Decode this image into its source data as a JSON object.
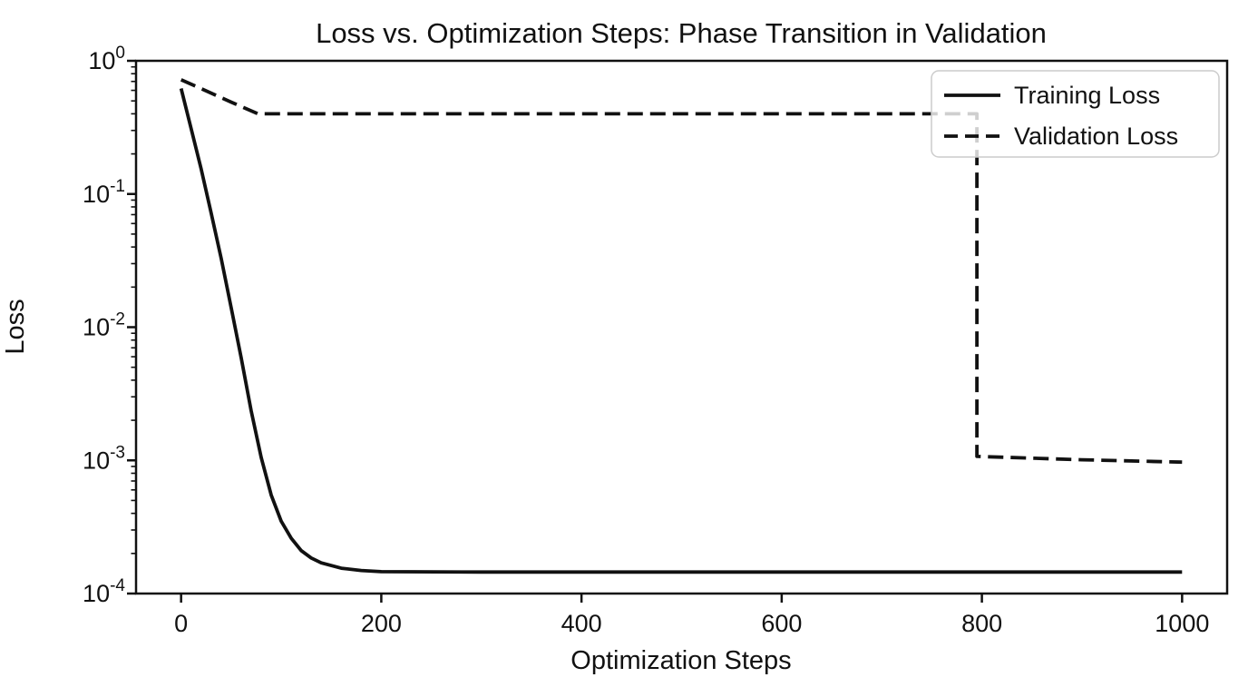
{
  "figure": {
    "background": "#ffffff",
    "line_color": "#111111",
    "legend_border_color": "#cccccc",
    "legend_bg": "rgba(255,255,255,0.8)"
  },
  "chart_data": {
    "type": "line",
    "title": "Loss vs. Optimization Steps: Phase Transition in Validation",
    "xlabel": "Optimization Steps",
    "ylabel": "Loss",
    "x_scale": "linear",
    "y_scale": "log",
    "x_ticks": [
      0,
      200,
      400,
      600,
      800,
      1000
    ],
    "y_tick_exponents": [
      0,
      -1,
      -2,
      -3,
      -4
    ],
    "xlim": [
      -45,
      1045
    ],
    "ylim": [
      0.0001,
      1.0
    ],
    "grid": false,
    "legend": {
      "position": "upper right",
      "entries": [
        "Training Loss",
        "Validation Loss"
      ]
    },
    "series": [
      {
        "name": "Training Loss",
        "style": "solid",
        "color": "#111111",
        "points": [
          [
            0,
            0.62
          ],
          [
            10,
            0.31
          ],
          [
            20,
            0.155
          ],
          [
            30,
            0.072
          ],
          [
            40,
            0.033
          ],
          [
            50,
            0.0141
          ],
          [
            60,
            0.0059
          ],
          [
            70,
            0.00236
          ],
          [
            80,
            0.00105
          ],
          [
            90,
            0.00055
          ],
          [
            100,
            0.00035
          ],
          [
            110,
            0.00026
          ],
          [
            120,
            0.00021
          ],
          [
            130,
            0.000185
          ],
          [
            140,
            0.00017
          ],
          [
            160,
            0.000155
          ],
          [
            180,
            0.000149
          ],
          [
            200,
            0.000146
          ],
          [
            300,
            0.000145
          ],
          [
            400,
            0.000145
          ],
          [
            500,
            0.000145
          ],
          [
            600,
            0.000145
          ],
          [
            700,
            0.000145
          ],
          [
            800,
            0.000145
          ],
          [
            900,
            0.000145
          ],
          [
            1000,
            0.000145
          ]
        ]
      },
      {
        "name": "Validation Loss",
        "style": "dashed",
        "color": "#111111",
        "points": [
          [
            0,
            0.72
          ],
          [
            25,
            0.595
          ],
          [
            50,
            0.49
          ],
          [
            77,
            0.4
          ],
          [
            200,
            0.4
          ],
          [
            400,
            0.4
          ],
          [
            600,
            0.4
          ],
          [
            795,
            0.4
          ],
          [
            795,
            0.00107
          ],
          [
            900,
            0.00101
          ],
          [
            1000,
            0.00097
          ]
        ]
      }
    ]
  }
}
